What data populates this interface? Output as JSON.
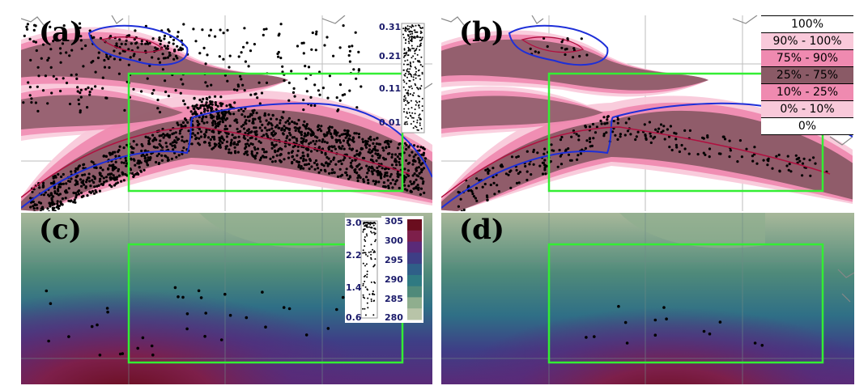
{
  "panels": {
    "a": {
      "label": "(a)"
    },
    "b": {
      "label": "(b)"
    },
    "c": {
      "label": "(c)"
    },
    "d": {
      "label": "(d)"
    }
  },
  "density_scale_a": {
    "ticks": [
      "0.31",
      "0.21",
      "0.11",
      "0.01"
    ]
  },
  "density_scale_c": {
    "ticks": [
      "3.0",
      "2.2",
      "1.4",
      "0.6"
    ]
  },
  "temperature_scale": {
    "ticks": [
      "305",
      "300",
      "295",
      "290",
      "285",
      "280"
    ],
    "colors": [
      "#6a0d1e",
      "#7d1f4a",
      "#5a2a78",
      "#3e3e86",
      "#2f5f88",
      "#2f7a82",
      "#4f8a7a",
      "#8fae8e",
      "#b8c4a8"
    ]
  },
  "probability_legend": {
    "rows": [
      {
        "label": "100%",
        "color": "#ffffff"
      },
      {
        "label": "90%  -  100%",
        "color": "#f9c9da"
      },
      {
        "label": "75%  -   90%",
        "color": "#ef8ab0"
      },
      {
        "label": "25%  -   75%",
        "color": "#8a5a66"
      },
      {
        "label": "10%  -   25%",
        "color": "#ef8ab0"
      },
      {
        "label": "0%  -   10%",
        "color": "#f9c9da"
      },
      {
        "label": "0%",
        "color": "#ffffff"
      }
    ]
  },
  "colors": {
    "pink_light": "#f9c9da",
    "pink_mid": "#ef8ab0",
    "pink_dark": "#e0457f",
    "mauve": "#8a5a66",
    "contour_blue": "#1e2fd8",
    "contour_red": "#b01040",
    "box_green": "#33ee33",
    "coast_gray": "#888888"
  }
}
